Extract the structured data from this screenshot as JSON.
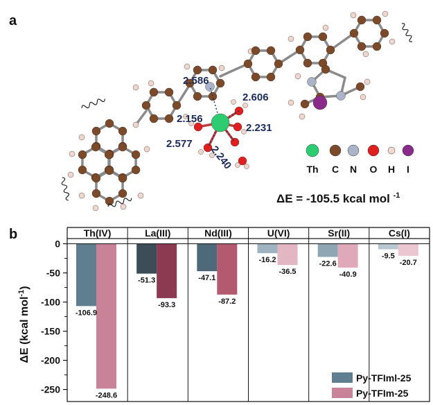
{
  "panel_a": {
    "label": "a",
    "distances": [
      "2.586",
      "2.606",
      "2.156",
      "2.231",
      "2.577",
      "2.240"
    ],
    "atom_legend": [
      {
        "symbol": "Th",
        "color": "#2ecc71"
      },
      {
        "symbol": "C",
        "color": "#7a4a2a"
      },
      {
        "symbol": "N",
        "color": "#aab4c8"
      },
      {
        "symbol": "O",
        "color": "#e02020"
      },
      {
        "symbol": "H",
        "color": "#f3d9d2"
      },
      {
        "symbol": "I",
        "color": "#8a2a8a"
      }
    ],
    "binding_energy": "ΔE = -105.5 kcal mol",
    "binding_energy_sup": "-1"
  },
  "chart_data": {
    "label": "b",
    "type": "bar",
    "categories": [
      "Th(IV)",
      "La(III)",
      "Nd(III)",
      "U(VI)",
      "Sr(II)",
      "Cs(I)"
    ],
    "series": [
      {
        "name": "Py-TFIml-25",
        "values": [
          -106.9,
          -51.3,
          -47.1,
          -16.2,
          -22.6,
          -9.5
        ],
        "colors": [
          "#5f7f91",
          "#3c4d58",
          "#4e6a7a",
          "#9fb3c0",
          "#8fa6b4",
          "#b9c7d1"
        ]
      },
      {
        "name": "Py-TFIm-25",
        "values": [
          -248.6,
          -93.3,
          -87.2,
          -36.5,
          -40.9,
          -20.7
        ],
        "colors": [
          "#c98398",
          "#8b3a52",
          "#b35a70",
          "#e2b6c2",
          "#e0a9b9",
          "#ecc6d0"
        ]
      }
    ],
    "value_labels": [
      [
        "-106.9",
        "-51.3",
        "-47.1",
        "-16.2",
        "-22.6",
        "-9.5"
      ],
      [
        "-248.6",
        "-93.3",
        "-87.2",
        "-36.5",
        "-40.9",
        "-20.7"
      ]
    ],
    "ylabel": "ΔE (kcal mol",
    "ylabel_sup": "-1",
    "ylabel_close": ")",
    "yticks": [
      0,
      -50,
      -100,
      -150,
      -200,
      -250
    ],
    "ylim": [
      -260,
      0
    ],
    "legend": [
      {
        "name": "Py-TFIml-25",
        "color": "#5f7f91"
      },
      {
        "name": "Py-TFIm-25",
        "color": "#c98398"
      }
    ],
    "legend_position": "bottom-right"
  }
}
